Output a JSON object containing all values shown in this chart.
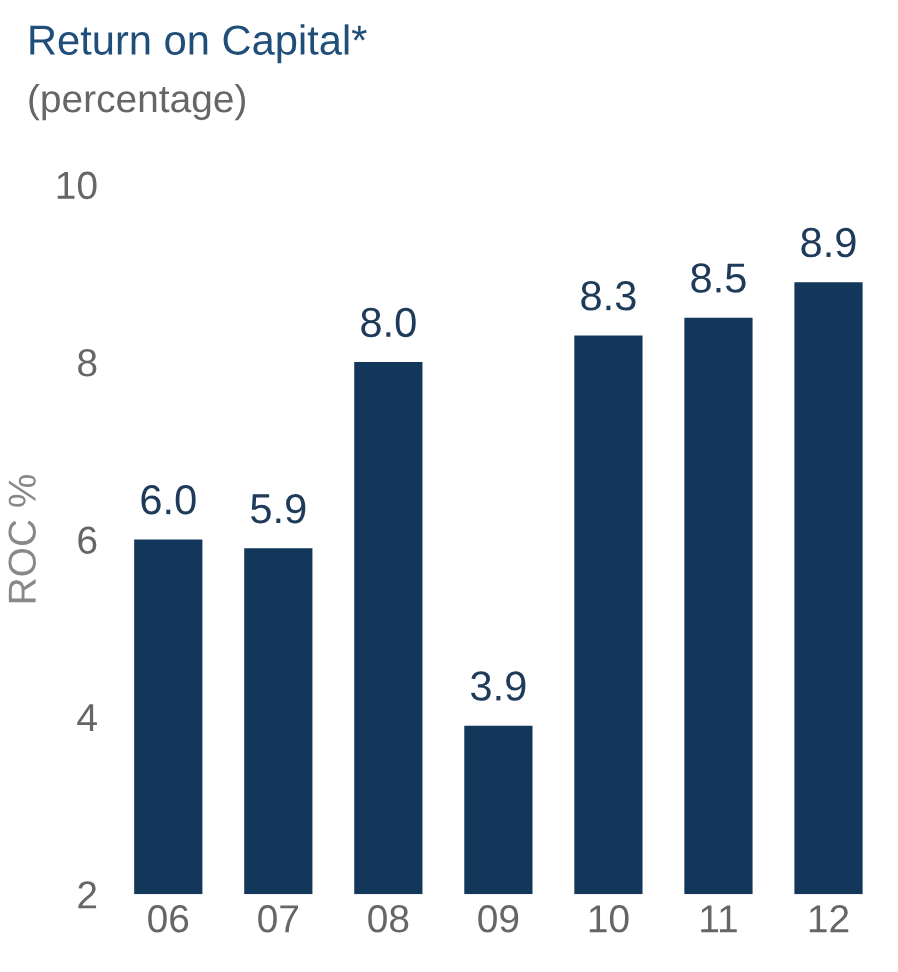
{
  "chart_data": {
    "type": "bar",
    "title": "Return on Capital*",
    "subtitle": "(percentage)",
    "ylabel": "ROC %",
    "categories": [
      "06",
      "07",
      "08",
      "09",
      "10",
      "11",
      "12"
    ],
    "values": [
      6.0,
      5.9,
      8.0,
      3.9,
      8.3,
      8.5,
      8.9
    ],
    "value_labels": [
      "6.0",
      "5.9",
      "8.0",
      "3.9",
      "8.3",
      "8.5",
      "8.9"
    ],
    "color": "#12375a",
    "ylim": [
      2,
      10
    ],
    "yticks": [
      2,
      4,
      6,
      8,
      10
    ],
    "grid": false,
    "legend": false
  }
}
